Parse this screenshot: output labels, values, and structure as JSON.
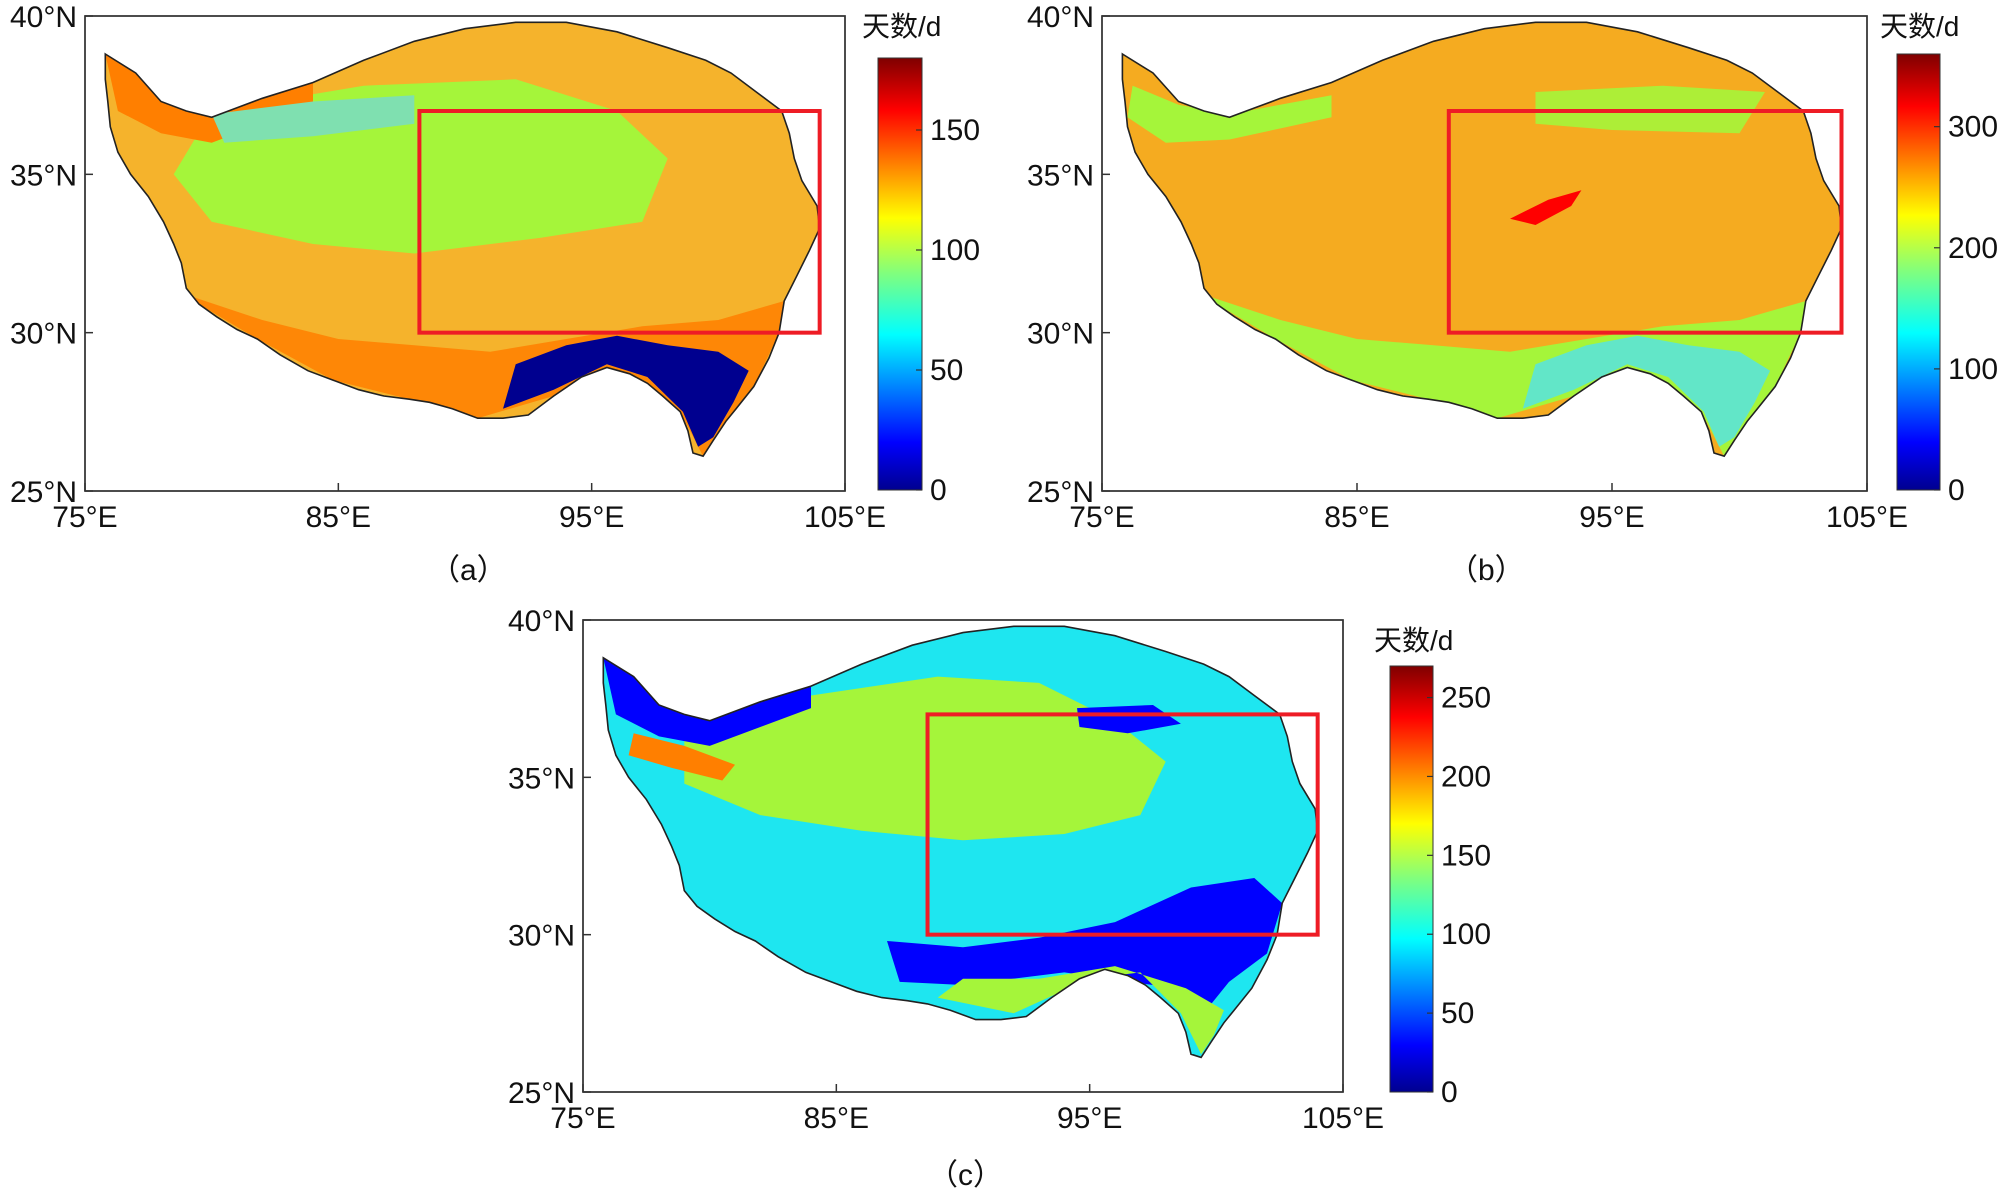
{
  "figure": {
    "colormap": [
      "#00008f",
      "#0000ff",
      "#007fff",
      "#00ffff",
      "#7fff7f",
      "#ffff00",
      "#ff7f00",
      "#ff0000",
      "#7f0000"
    ],
    "highlight_color": "#ee1c25",
    "land_outline_color": "#222222"
  },
  "panels": [
    {
      "caption": "（a）",
      "x_ticks": [
        "75°E",
        "85°E",
        "95°E",
        "105°E"
      ],
      "y_ticks": [
        "25°N",
        "30°N",
        "35°N",
        "40°N"
      ],
      "lon_range": [
        75,
        105
      ],
      "lat_range": [
        25,
        40
      ],
      "region_box": {
        "lon": [
          88.2,
          104
        ],
        "lat": [
          30,
          37
        ]
      },
      "colorbar": {
        "title": "天数/d",
        "range": [
          0,
          180
        ],
        "ticks": [
          "0",
          "50",
          "100",
          "150"
        ],
        "tick_values": [
          0,
          50,
          100,
          150
        ]
      },
      "dominant_color": "#a5f53a",
      "secondary_color": "#f5b32c"
    },
    {
      "caption": "（b）",
      "x_ticks": [
        "75°E",
        "85°E",
        "95°E",
        "105°E"
      ],
      "y_ticks": [
        "25°N",
        "30°N",
        "35°N",
        "40°N"
      ],
      "lon_range": [
        75,
        105
      ],
      "lat_range": [
        25,
        40
      ],
      "region_box": {
        "lon": [
          88.6,
          104
        ],
        "lat": [
          30,
          37
        ]
      },
      "colorbar": {
        "title": "天数/d",
        "range": [
          0,
          360
        ],
        "ticks": [
          "0",
          "100",
          "200",
          "300"
        ],
        "tick_values": [
          0,
          100,
          200,
          300
        ]
      },
      "dominant_color": "#f5ab20",
      "secondary_color": "#a5f53a"
    },
    {
      "caption": "（c）",
      "x_ticks": [
        "75°E",
        "85°E",
        "95°E",
        "105°E"
      ],
      "y_ticks": [
        "25°N",
        "30°N",
        "35°N",
        "40°N"
      ],
      "lon_range": [
        75,
        105
      ],
      "lat_range": [
        25,
        40
      ],
      "region_box": {
        "lon": [
          88.6,
          104
        ],
        "lat": [
          30,
          37
        ]
      },
      "colorbar": {
        "title": "天数/d",
        "range": [
          0,
          270
        ],
        "ticks": [
          "0",
          "50",
          "100",
          "150",
          "200",
          "250"
        ],
        "tick_values": [
          0,
          50,
          100,
          150,
          200,
          250
        ]
      },
      "dominant_color": "#a5f53a",
      "secondary_color": "#1ee6f0"
    }
  ]
}
